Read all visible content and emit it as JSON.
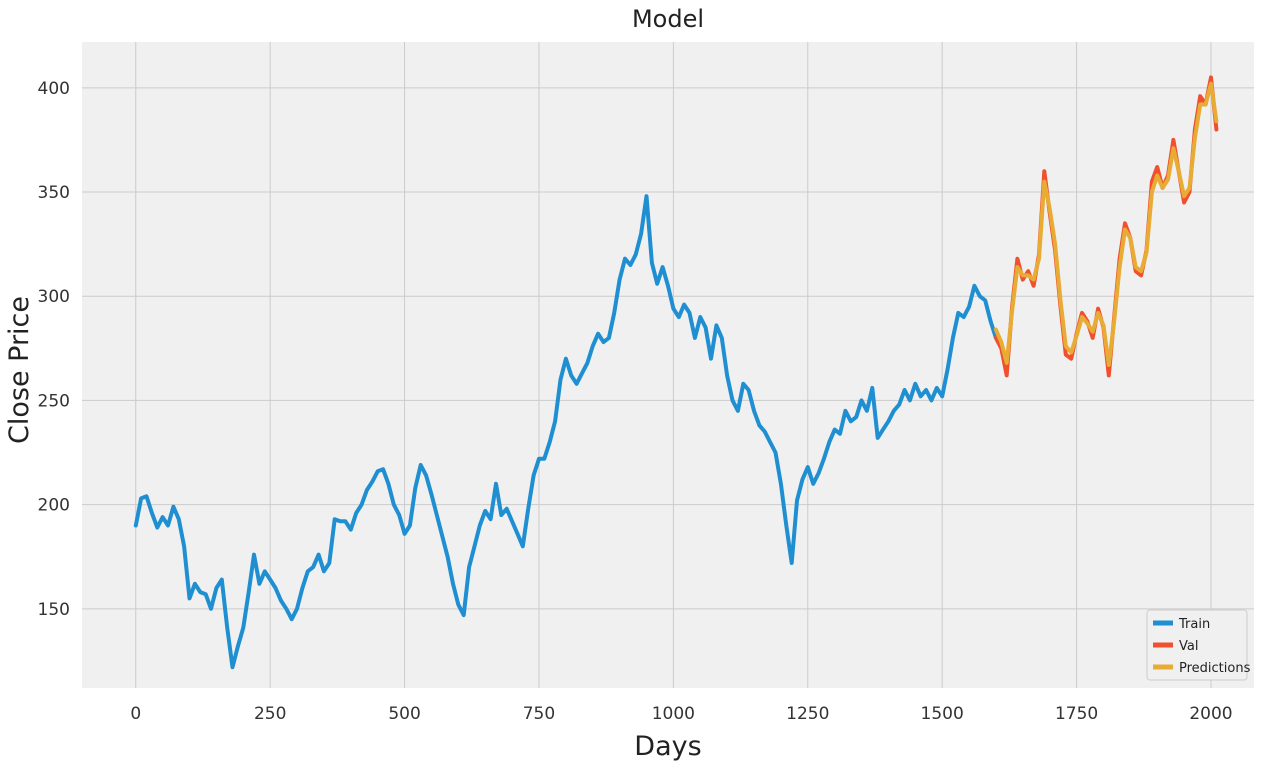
{
  "chart_data": {
    "type": "line",
    "title": "Model",
    "xlabel": "Days",
    "ylabel": "Close Price",
    "xlim": [
      -100,
      2080
    ],
    "ylim": [
      112,
      422
    ],
    "x_ticks": [
      0,
      250,
      500,
      750,
      1000,
      1250,
      1500,
      1750,
      2000
    ],
    "y_ticks": [
      150,
      200,
      250,
      300,
      350,
      400
    ],
    "grid": true,
    "legend_position": "lower-right",
    "series": [
      {
        "name": "Train",
        "color": "#1f8fd2",
        "points": [
          [
            0,
            190
          ],
          [
            10,
            203
          ],
          [
            20,
            204
          ],
          [
            30,
            196
          ],
          [
            40,
            189
          ],
          [
            50,
            194
          ],
          [
            60,
            190
          ],
          [
            70,
            199
          ],
          [
            80,
            193
          ],
          [
            90,
            180
          ],
          [
            100,
            155
          ],
          [
            110,
            162
          ],
          [
            120,
            158
          ],
          [
            130,
            157
          ],
          [
            140,
            150
          ],
          [
            150,
            160
          ],
          [
            160,
            164
          ],
          [
            170,
            141
          ],
          [
            180,
            122
          ],
          [
            190,
            132
          ],
          [
            200,
            141
          ],
          [
            210,
            158
          ],
          [
            220,
            176
          ],
          [
            230,
            162
          ],
          [
            240,
            168
          ],
          [
            250,
            164
          ],
          [
            260,
            160
          ],
          [
            270,
            154
          ],
          [
            280,
            150
          ],
          [
            290,
            145
          ],
          [
            300,
            150
          ],
          [
            310,
            160
          ],
          [
            320,
            168
          ],
          [
            330,
            170
          ],
          [
            340,
            176
          ],
          [
            350,
            168
          ],
          [
            360,
            172
          ],
          [
            370,
            193
          ],
          [
            380,
            192
          ],
          [
            390,
            192
          ],
          [
            400,
            188
          ],
          [
            410,
            196
          ],
          [
            420,
            200
          ],
          [
            430,
            207
          ],
          [
            440,
            211
          ],
          [
            450,
            216
          ],
          [
            460,
            217
          ],
          [
            470,
            210
          ],
          [
            480,
            200
          ],
          [
            490,
            195
          ],
          [
            500,
            186
          ],
          [
            510,
            190
          ],
          [
            520,
            208
          ],
          [
            530,
            219
          ],
          [
            540,
            214
          ],
          [
            550,
            205
          ],
          [
            560,
            195
          ],
          [
            570,
            185
          ],
          [
            580,
            175
          ],
          [
            590,
            162
          ],
          [
            600,
            152
          ],
          [
            610,
            147
          ],
          [
            620,
            170
          ],
          [
            630,
            180
          ],
          [
            640,
            190
          ],
          [
            650,
            197
          ],
          [
            660,
            193
          ],
          [
            670,
            210
          ],
          [
            680,
            195
          ],
          [
            690,
            198
          ],
          [
            700,
            192
          ],
          [
            710,
            186
          ],
          [
            720,
            180
          ],
          [
            730,
            198
          ],
          [
            740,
            214
          ],
          [
            750,
            222
          ],
          [
            760,
            222
          ],
          [
            770,
            230
          ],
          [
            780,
            240
          ],
          [
            790,
            260
          ],
          [
            800,
            270
          ],
          [
            810,
            262
          ],
          [
            820,
            258
          ],
          [
            830,
            263
          ],
          [
            840,
            268
          ],
          [
            850,
            276
          ],
          [
            860,
            282
          ],
          [
            870,
            278
          ],
          [
            880,
            280
          ],
          [
            890,
            292
          ],
          [
            900,
            308
          ],
          [
            910,
            318
          ],
          [
            920,
            315
          ],
          [
            930,
            320
          ],
          [
            940,
            330
          ],
          [
            950,
            348
          ],
          [
            960,
            316
          ],
          [
            970,
            306
          ],
          [
            980,
            314
          ],
          [
            990,
            305
          ],
          [
            1000,
            294
          ],
          [
            1010,
            290
          ],
          [
            1020,
            296
          ],
          [
            1030,
            292
          ],
          [
            1040,
            280
          ],
          [
            1050,
            290
          ],
          [
            1060,
            285
          ],
          [
            1070,
            270
          ],
          [
            1080,
            286
          ],
          [
            1090,
            280
          ],
          [
            1100,
            262
          ],
          [
            1110,
            250
          ],
          [
            1120,
            245
          ],
          [
            1130,
            258
          ],
          [
            1140,
            255
          ],
          [
            1150,
            245
          ],
          [
            1160,
            238
          ],
          [
            1170,
            235
          ],
          [
            1180,
            230
          ],
          [
            1190,
            225
          ],
          [
            1200,
            210
          ],
          [
            1210,
            190
          ],
          [
            1220,
            172
          ],
          [
            1230,
            202
          ],
          [
            1240,
            212
          ],
          [
            1250,
            218
          ],
          [
            1260,
            210
          ],
          [
            1270,
            215
          ],
          [
            1280,
            222
          ],
          [
            1290,
            230
          ],
          [
            1300,
            236
          ],
          [
            1310,
            234
          ],
          [
            1320,
            245
          ],
          [
            1330,
            240
          ],
          [
            1340,
            242
          ],
          [
            1350,
            250
          ],
          [
            1360,
            245
          ],
          [
            1370,
            256
          ],
          [
            1380,
            232
          ],
          [
            1390,
            236
          ],
          [
            1400,
            240
          ],
          [
            1410,
            245
          ],
          [
            1420,
            248
          ],
          [
            1430,
            255
          ],
          [
            1440,
            250
          ],
          [
            1450,
            258
          ],
          [
            1460,
            252
          ],
          [
            1470,
            255
          ],
          [
            1480,
            250
          ],
          [
            1490,
            256
          ],
          [
            1500,
            252
          ],
          [
            1510,
            265
          ],
          [
            1520,
            280
          ],
          [
            1530,
            292
          ],
          [
            1540,
            290
          ],
          [
            1550,
            295
          ],
          [
            1560,
            305
          ],
          [
            1570,
            300
          ],
          [
            1580,
            298
          ],
          [
            1590,
            288
          ],
          [
            1600,
            280
          ]
        ]
      },
      {
        "name": "Val",
        "color": "#f0502f",
        "points": [
          [
            1600,
            280
          ],
          [
            1610,
            275
          ],
          [
            1620,
            262
          ],
          [
            1630,
            295
          ],
          [
            1640,
            318
          ],
          [
            1650,
            308
          ],
          [
            1660,
            312
          ],
          [
            1670,
            305
          ],
          [
            1680,
            320
          ],
          [
            1690,
            360
          ],
          [
            1700,
            340
          ],
          [
            1710,
            322
          ],
          [
            1720,
            295
          ],
          [
            1730,
            272
          ],
          [
            1740,
            270
          ],
          [
            1750,
            282
          ],
          [
            1760,
            292
          ],
          [
            1770,
            288
          ],
          [
            1780,
            280
          ],
          [
            1790,
            294
          ],
          [
            1800,
            285
          ],
          [
            1810,
            262
          ],
          [
            1820,
            290
          ],
          [
            1830,
            318
          ],
          [
            1840,
            335
          ],
          [
            1850,
            328
          ],
          [
            1860,
            312
          ],
          [
            1870,
            310
          ],
          [
            1880,
            322
          ],
          [
            1890,
            355
          ],
          [
            1900,
            362
          ],
          [
            1910,
            352
          ],
          [
            1920,
            358
          ],
          [
            1930,
            375
          ],
          [
            1940,
            360
          ],
          [
            1950,
            345
          ],
          [
            1960,
            350
          ],
          [
            1970,
            380
          ],
          [
            1980,
            396
          ],
          [
            1990,
            392
          ],
          [
            2000,
            405
          ],
          [
            2010,
            380
          ]
        ]
      },
      {
        "name": "Predictions",
        "color": "#e8ac35",
        "points": [
          [
            1600,
            284
          ],
          [
            1610,
            278
          ],
          [
            1620,
            268
          ],
          [
            1630,
            293
          ],
          [
            1640,
            314
          ],
          [
            1650,
            310
          ],
          [
            1660,
            310
          ],
          [
            1670,
            308
          ],
          [
            1680,
            318
          ],
          [
            1690,
            355
          ],
          [
            1700,
            342
          ],
          [
            1710,
            325
          ],
          [
            1720,
            298
          ],
          [
            1730,
            276
          ],
          [
            1740,
            273
          ],
          [
            1750,
            281
          ],
          [
            1760,
            290
          ],
          [
            1770,
            287
          ],
          [
            1780,
            283
          ],
          [
            1790,
            292
          ],
          [
            1800,
            286
          ],
          [
            1810,
            267
          ],
          [
            1820,
            288
          ],
          [
            1830,
            314
          ],
          [
            1840,
            332
          ],
          [
            1850,
            328
          ],
          [
            1860,
            314
          ],
          [
            1870,
            312
          ],
          [
            1880,
            321
          ],
          [
            1890,
            350
          ],
          [
            1900,
            358
          ],
          [
            1910,
            352
          ],
          [
            1920,
            356
          ],
          [
            1930,
            371
          ],
          [
            1940,
            360
          ],
          [
            1950,
            348
          ],
          [
            1960,
            352
          ],
          [
            1970,
            376
          ],
          [
            1980,
            392
          ],
          [
            1990,
            392
          ],
          [
            2000,
            402
          ],
          [
            2010,
            384
          ]
        ]
      }
    ]
  }
}
